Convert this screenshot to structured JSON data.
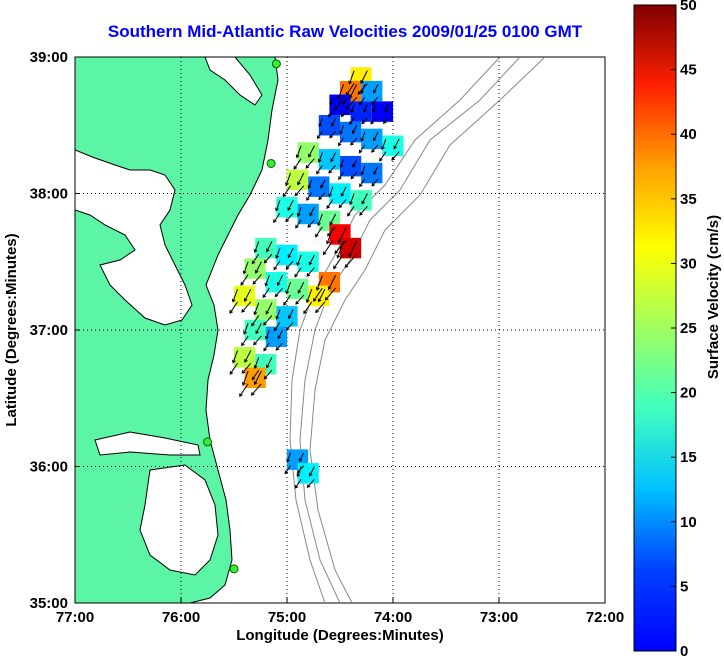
{
  "title": "Southern Mid-Atlantic Raw Velocities 2009/01/25 0100 GMT",
  "x_axis": {
    "label": "Longitude (Degrees:Minutes)",
    "ticks": [
      "77:00",
      "76:00",
      "75:00",
      "74:00",
      "73:00",
      "72:00"
    ]
  },
  "y_axis": {
    "label": "Latitude (Degrees:Minutes)",
    "ticks": [
      "39:00",
      "38:00",
      "37:00",
      "36:00",
      "35:00"
    ]
  },
  "colorbar": {
    "label": "Surface Velocity (cm/s)",
    "ticks": [
      "50",
      "45",
      "40",
      "35",
      "30",
      "25",
      "20",
      "15",
      "10",
      "5",
      "0"
    ],
    "colormap": "jet",
    "range": [
      0,
      50
    ]
  },
  "map_extent": {
    "lon_min": -77,
    "lon_max": -72,
    "lat_min": 35,
    "lat_max": 39
  },
  "colors": {
    "land": "#5cf5a5",
    "title": "#0000ff",
    "arrows": "#000000",
    "bathymetry": "#888888"
  },
  "grid": "dotted",
  "stations": [
    {
      "lon": -75.1,
      "lat": 38.95
    },
    {
      "lon": -75.15,
      "lat": 38.22
    },
    {
      "lon": -75.75,
      "lat": 36.18
    },
    {
      "lon": -75.5,
      "lat": 35.25
    }
  ],
  "chart_data": {
    "type": "heatmap",
    "title": "Southern Mid-Atlantic Raw Velocities 2009/01/25 0100 GMT",
    "xlabel": "Longitude (Degrees:Minutes)",
    "ylabel": "Latitude (Degrees:Minutes)",
    "xlim": [
      -77,
      -72
    ],
    "ylim": [
      35,
      39
    ],
    "colorbar_label": "Surface Velocity (cm/s)",
    "clim": [
      0,
      50
    ],
    "note_cells": "lon, lat, speed(cm/s)",
    "cells": [
      [
        -74.3,
        38.85,
        32
      ],
      [
        -74.4,
        38.75,
        38
      ],
      [
        -74.2,
        38.75,
        14
      ],
      [
        -74.5,
        38.65,
        6
      ],
      [
        -74.3,
        38.6,
        8
      ],
      [
        -74.1,
        38.6,
        6
      ],
      [
        -74.6,
        38.5,
        10
      ],
      [
        -74.4,
        38.45,
        12
      ],
      [
        -74.2,
        38.4,
        14
      ],
      [
        -74.0,
        38.35,
        20
      ],
      [
        -74.8,
        38.3,
        26
      ],
      [
        -74.6,
        38.25,
        16
      ],
      [
        -74.4,
        38.2,
        10
      ],
      [
        -74.2,
        38.15,
        12
      ],
      [
        -74.9,
        38.1,
        28
      ],
      [
        -74.7,
        38.05,
        12
      ],
      [
        -74.5,
        38.0,
        18
      ],
      [
        -74.3,
        37.95,
        22
      ],
      [
        -75.0,
        37.9,
        20
      ],
      [
        -74.8,
        37.85,
        14
      ],
      [
        -74.6,
        37.8,
        24
      ],
      [
        -74.5,
        37.7,
        44
      ],
      [
        -74.4,
        37.6,
        46
      ],
      [
        -75.2,
        37.6,
        22
      ],
      [
        -75.0,
        37.55,
        18
      ],
      [
        -74.8,
        37.5,
        20
      ],
      [
        -75.3,
        37.45,
        26
      ],
      [
        -74.6,
        37.35,
        38
      ],
      [
        -74.7,
        37.25,
        32
      ],
      [
        -74.9,
        37.3,
        24
      ],
      [
        -75.1,
        37.35,
        20
      ],
      [
        -75.4,
        37.25,
        30
      ],
      [
        -75.2,
        37.15,
        26
      ],
      [
        -75.0,
        37.1,
        16
      ],
      [
        -75.3,
        37.0,
        22
      ],
      [
        -75.1,
        36.95,
        14
      ],
      [
        -75.4,
        36.8,
        28
      ],
      [
        -75.2,
        36.75,
        22
      ],
      [
        -75.3,
        36.65,
        36
      ],
      [
        -74.9,
        36.05,
        14
      ],
      [
        -74.8,
        35.95,
        18
      ]
    ]
  }
}
